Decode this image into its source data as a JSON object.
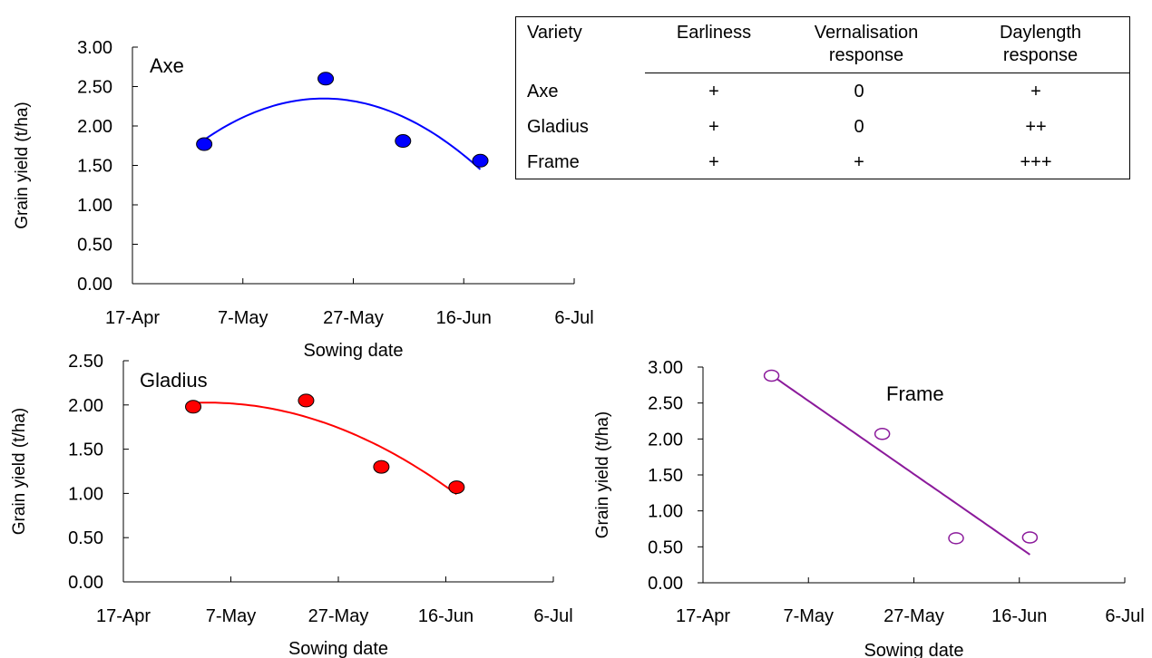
{
  "chart_data": [
    {
      "type": "scatter",
      "label": "Axe",
      "xlabel": "Sowing date",
      "ylabel": "Grain yield (t/ha)",
      "x_ticks": [
        "17-Apr",
        "7-May",
        "27-May",
        "16-Jun",
        "6-Jul"
      ],
      "y_ticks": [
        "0.00",
        "0.50",
        "1.00",
        "1.50",
        "2.00",
        "2.50",
        "3.00"
      ],
      "xlim": [
        "17-Apr",
        "6-Jul"
      ],
      "ylim": [
        0,
        3
      ],
      "marker": "filled",
      "color": "#0000FF",
      "points": [
        {
          "x": "30-Apr",
          "y": 1.77
        },
        {
          "x": "22-May",
          "y": 2.6
        },
        {
          "x": "5-Jun",
          "y": 1.81
        },
        {
          "x": "19-Jun",
          "y": 1.56
        }
      ],
      "trendline": {
        "type": "polynomial",
        "degree": 2,
        "x_range": [
          "30-Apr",
          "19-Jun"
        ]
      }
    },
    {
      "type": "scatter",
      "label": "Gladius",
      "xlabel": "Sowing date",
      "ylabel": "Grain yield (t/ha)",
      "x_ticks": [
        "17-Apr",
        "7-May",
        "27-May",
        "16-Jun",
        "6-Jul"
      ],
      "y_ticks": [
        "0.00",
        "0.50",
        "1.00",
        "1.50",
        "2.00",
        "2.50"
      ],
      "xlim": [
        "17-Apr",
        "6-Jul"
      ],
      "ylim": [
        0,
        2.5
      ],
      "marker": "filled",
      "color": "#FF0000",
      "points": [
        {
          "x": "30-Apr",
          "y": 1.98
        },
        {
          "x": "21-May",
          "y": 2.05
        },
        {
          "x": "4-Jun",
          "y": 1.3
        },
        {
          "x": "18-Jun",
          "y": 1.07
        }
      ],
      "trendline": {
        "type": "polynomial",
        "degree": 2,
        "x_range": [
          "30-Apr",
          "18-Jun"
        ]
      }
    },
    {
      "type": "scatter",
      "label": "Frame",
      "xlabel": "Sowing date",
      "ylabel": "Grain yield (t/ha)",
      "x_ticks": [
        "17-Apr",
        "7-May",
        "27-May",
        "16-Jun",
        "6-Jul"
      ],
      "y_ticks": [
        "0.00",
        "0.50",
        "1.00",
        "1.50",
        "2.00",
        "2.50",
        "3.00"
      ],
      "xlim": [
        "17-Apr",
        "6-Jul"
      ],
      "ylim": [
        0,
        3
      ],
      "marker": "hollow",
      "color": "#8B1A9B",
      "points": [
        {
          "x": "30-Apr",
          "y": 2.88
        },
        {
          "x": "21-May",
          "y": 2.07
        },
        {
          "x": "4-Jun",
          "y": 0.62
        },
        {
          "x": "18-Jun",
          "y": 0.63
        }
      ],
      "trendline": {
        "type": "linear",
        "x_range": [
          "30-Apr",
          "18-Jun"
        ]
      }
    }
  ],
  "variety_table": {
    "header": {
      "variety": "Variety",
      "earliness": "Earliness",
      "vernalisation_line1": "Vernalisation",
      "vernalisation_line2": "response",
      "daylength_line1": "Daylength",
      "daylength_line2": "response"
    },
    "rows": [
      {
        "variety": "Axe",
        "earliness": "+",
        "vernalisation": "0",
        "daylength": "+"
      },
      {
        "variety": "Gladius",
        "earliness": "+",
        "vernalisation": "0",
        "daylength": "++"
      },
      {
        "variety": "Frame",
        "earliness": "+",
        "vernalisation": "+",
        "daylength": "+++"
      }
    ]
  }
}
